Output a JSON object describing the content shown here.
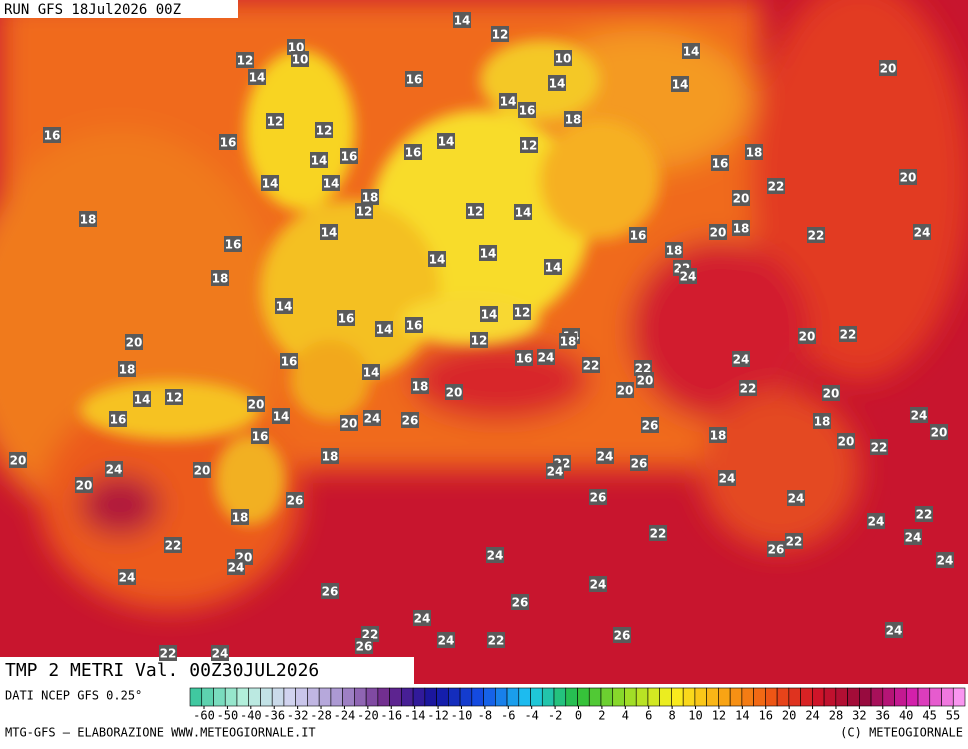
{
  "header": {
    "run": "RUN GFS 18Jul2026 00Z"
  },
  "title": "TMP 2 METRI Val. 00Z30JUL2026",
  "source": "DATI NCEP GFS 0.25°",
  "scale": {
    "ticks": [
      -60,
      -50,
      -40,
      -36,
      -32,
      -28,
      -24,
      -20,
      -16,
      -14,
      -12,
      -10,
      -8,
      -6,
      -4,
      -2,
      0,
      2,
      4,
      6,
      8,
      10,
      12,
      14,
      16,
      20,
      24,
      28,
      32,
      36,
      40,
      45,
      55
    ]
  },
  "footer": {
    "left": "MTG-GFS — ELABORAZIONE WWW.METEOGIORNALE.IT",
    "right": "(C) METEOGIORNALE"
  },
  "labels": [
    14,
    12,
    10,
    12,
    10,
    10,
    14,
    20,
    14,
    16,
    14,
    14,
    14,
    16,
    18,
    12,
    12,
    16,
    16,
    14,
    12,
    16,
    16,
    14,
    16,
    18,
    14,
    14,
    22,
    20,
    18,
    20,
    18,
    12,
    12,
    14,
    14,
    20,
    18,
    22,
    24,
    16,
    16,
    18,
    14,
    14,
    14,
    22,
    24,
    18,
    14,
    16,
    14,
    12,
    14,
    16,
    20,
    22,
    14,
    20,
    12,
    16,
    16,
    24,
    18,
    22,
    22,
    24,
    18,
    14,
    18,
    20,
    20,
    22,
    20,
    20,
    14,
    12,
    20,
    14,
    16,
    20,
    24,
    26,
    26,
    18,
    24,
    20,
    16,
    18,
    20,
    22,
    20,
    18,
    24,
    22,
    24,
    24,
    26,
    20,
    24,
    20,
    26,
    26,
    24,
    22,
    18,
    24,
    24,
    22,
    22,
    22,
    26,
    20,
    24,
    24,
    24,
    24,
    24,
    26,
    26,
    24,
    22,
    26,
    26,
    24,
    22,
    24,
    22,
    24
  ]
}
